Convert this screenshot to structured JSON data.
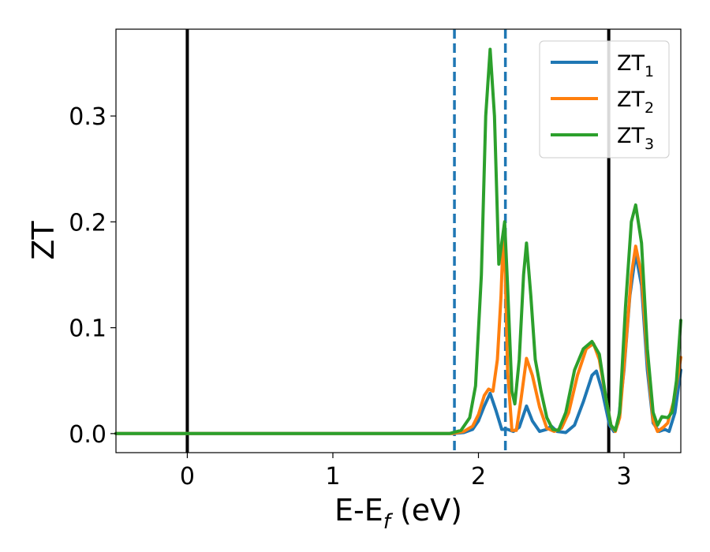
{
  "chart_data": {
    "type": "line",
    "xlabel": "E-E",
    "xlabel_sub": "f",
    "xlabel_unit": " (eV)",
    "ylabel": "ZT",
    "xlim": [
      -0.49,
      3.39
    ],
    "ylim": [
      -0.018,
      0.382
    ],
    "xticks": [
      0,
      1,
      2,
      3
    ],
    "xtick_labels": [
      "0",
      "1",
      "2",
      "3"
    ],
    "yticks": [
      0.0,
      0.1,
      0.2,
      0.3
    ],
    "ytick_labels": [
      "0.0",
      "0.1",
      "0.2",
      "0.3"
    ],
    "grid": false,
    "legend_position": "upper right",
    "vlines": [
      {
        "x": 0.0,
        "style": "solid",
        "color": "#000000"
      },
      {
        "x": 1.835,
        "style": "dashed",
        "color": "#1f77b4"
      },
      {
        "x": 2.185,
        "style": "dashed",
        "color": "#1f77b4"
      },
      {
        "x": 2.895,
        "style": "solid",
        "color": "#000000"
      }
    ],
    "series": [
      {
        "name": "ZT",
        "sub": "1",
        "color": "#1f77b4",
        "points": [
          [
            -0.49,
            0
          ],
          [
            1.82,
            0
          ],
          [
            1.9,
            0.001
          ],
          [
            1.96,
            0.004
          ],
          [
            2.0,
            0.012
          ],
          [
            2.04,
            0.026
          ],
          [
            2.08,
            0.038
          ],
          [
            2.12,
            0.022
          ],
          [
            2.16,
            0.004
          ],
          [
            2.2,
            0.004
          ],
          [
            2.24,
            0.002
          ],
          [
            2.28,
            0.006
          ],
          [
            2.33,
            0.026
          ],
          [
            2.37,
            0.012
          ],
          [
            2.42,
            0.002
          ],
          [
            2.47,
            0.004
          ],
          [
            2.5,
            0.007
          ],
          [
            2.54,
            0.002
          ],
          [
            2.6,
            0.001
          ],
          [
            2.66,
            0.008
          ],
          [
            2.72,
            0.03
          ],
          [
            2.78,
            0.055
          ],
          [
            2.81,
            0.059
          ],
          [
            2.85,
            0.04
          ],
          [
            2.9,
            0.008
          ],
          [
            2.93,
            0.002
          ],
          [
            2.96,
            0.01
          ],
          [
            3.0,
            0.06
          ],
          [
            3.04,
            0.13
          ],
          [
            3.08,
            0.17
          ],
          [
            3.12,
            0.14
          ],
          [
            3.16,
            0.06
          ],
          [
            3.2,
            0.01
          ],
          [
            3.24,
            0.002
          ],
          [
            3.28,
            0.004
          ],
          [
            3.31,
            0.002
          ],
          [
            3.35,
            0.02
          ],
          [
            3.39,
            0.06
          ]
        ]
      },
      {
        "name": "ZT",
        "sub": "2",
        "color": "#ff7f0e",
        "points": [
          [
            -0.49,
            0
          ],
          [
            1.82,
            0
          ],
          [
            1.9,
            0.002
          ],
          [
            1.96,
            0.007
          ],
          [
            2.0,
            0.018
          ],
          [
            2.04,
            0.036
          ],
          [
            2.07,
            0.042
          ],
          [
            2.1,
            0.04
          ],
          [
            2.13,
            0.07
          ],
          [
            2.155,
            0.13
          ],
          [
            2.17,
            0.187
          ],
          [
            2.185,
            0.15
          ],
          [
            2.2,
            0.06
          ],
          [
            2.23,
            0.003
          ],
          [
            2.26,
            0.003
          ],
          [
            2.29,
            0.03
          ],
          [
            2.33,
            0.071
          ],
          [
            2.37,
            0.055
          ],
          [
            2.42,
            0.025
          ],
          [
            2.47,
            0.005
          ],
          [
            2.52,
            0.002
          ],
          [
            2.57,
            0.005
          ],
          [
            2.62,
            0.02
          ],
          [
            2.68,
            0.055
          ],
          [
            2.74,
            0.08
          ],
          [
            2.79,
            0.085
          ],
          [
            2.83,
            0.07
          ],
          [
            2.88,
            0.03
          ],
          [
            2.91,
            0.008
          ],
          [
            2.94,
            0.002
          ],
          [
            2.97,
            0.015
          ],
          [
            3.01,
            0.08
          ],
          [
            3.05,
            0.15
          ],
          [
            3.08,
            0.177
          ],
          [
            3.12,
            0.15
          ],
          [
            3.16,
            0.07
          ],
          [
            3.2,
            0.012
          ],
          [
            3.23,
            0.002
          ],
          [
            3.27,
            0.006
          ],
          [
            3.3,
            0.01
          ],
          [
            3.34,
            0.03
          ],
          [
            3.39,
            0.072
          ]
        ]
      },
      {
        "name": "ZT",
        "sub": "3",
        "color": "#2ca02c",
        "points": [
          [
            -0.49,
            0
          ],
          [
            1.8,
            0
          ],
          [
            1.88,
            0.003
          ],
          [
            1.94,
            0.015
          ],
          [
            1.98,
            0.045
          ],
          [
            2.02,
            0.15
          ],
          [
            2.05,
            0.3
          ],
          [
            2.08,
            0.363
          ],
          [
            2.11,
            0.3
          ],
          [
            2.14,
            0.16
          ],
          [
            2.16,
            0.18
          ],
          [
            2.18,
            0.2
          ],
          [
            2.2,
            0.14
          ],
          [
            2.23,
            0.04
          ],
          [
            2.25,
            0.028
          ],
          [
            2.28,
            0.07
          ],
          [
            2.31,
            0.15
          ],
          [
            2.33,
            0.18
          ],
          [
            2.36,
            0.13
          ],
          [
            2.39,
            0.07
          ],
          [
            2.43,
            0.04
          ],
          [
            2.47,
            0.015
          ],
          [
            2.51,
            0.004
          ],
          [
            2.55,
            0.003
          ],
          [
            2.6,
            0.02
          ],
          [
            2.66,
            0.06
          ],
          [
            2.72,
            0.08
          ],
          [
            2.78,
            0.087
          ],
          [
            2.83,
            0.075
          ],
          [
            2.88,
            0.03
          ],
          [
            2.91,
            0.008
          ],
          [
            2.94,
            0.003
          ],
          [
            2.97,
            0.02
          ],
          [
            3.01,
            0.12
          ],
          [
            3.05,
            0.2
          ],
          [
            3.08,
            0.216
          ],
          [
            3.12,
            0.18
          ],
          [
            3.16,
            0.08
          ],
          [
            3.2,
            0.02
          ],
          [
            3.23,
            0.008
          ],
          [
            3.26,
            0.016
          ],
          [
            3.3,
            0.015
          ],
          [
            3.33,
            0.02
          ],
          [
            3.36,
            0.05
          ],
          [
            3.39,
            0.107
          ]
        ]
      }
    ]
  }
}
